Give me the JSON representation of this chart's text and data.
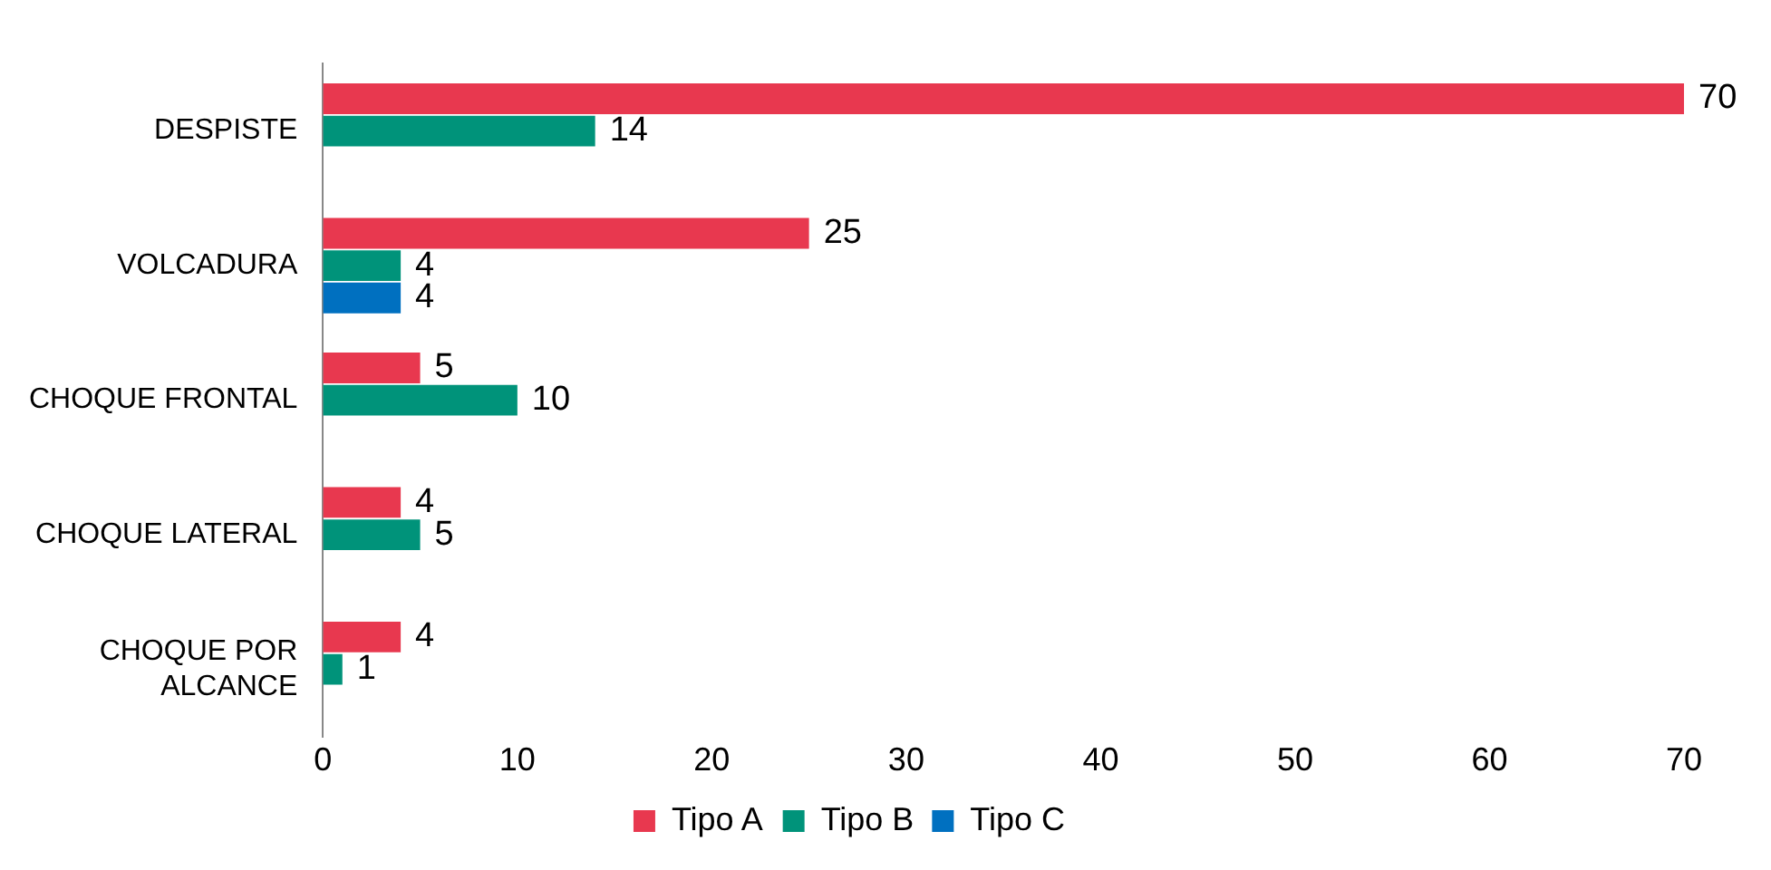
{
  "chart_data": {
    "type": "bar",
    "orientation": "horizontal",
    "categories": [
      "DESPISTE",
      "VOLCADURA",
      "CHOQUE FRONTAL",
      "CHOQUE LATERAL",
      "CHOQUE POR ALCANCE"
    ],
    "series": [
      {
        "name": "Tipo A",
        "color": "#e8384f",
        "values": [
          70,
          25,
          5,
          4,
          4
        ]
      },
      {
        "name": "Tipo B",
        "color": "#00937a",
        "values": [
          14,
          4,
          10,
          5,
          1
        ]
      },
      {
        "name": "Tipo C",
        "color": "#0070c0",
        "values": [
          null,
          4,
          null,
          null,
          null
        ]
      }
    ],
    "xlim": [
      0,
      70
    ],
    "xticks": [
      0,
      10,
      20,
      30,
      40,
      50,
      60,
      70
    ],
    "grid": false,
    "legend": "bottom",
    "data_labels": true
  }
}
